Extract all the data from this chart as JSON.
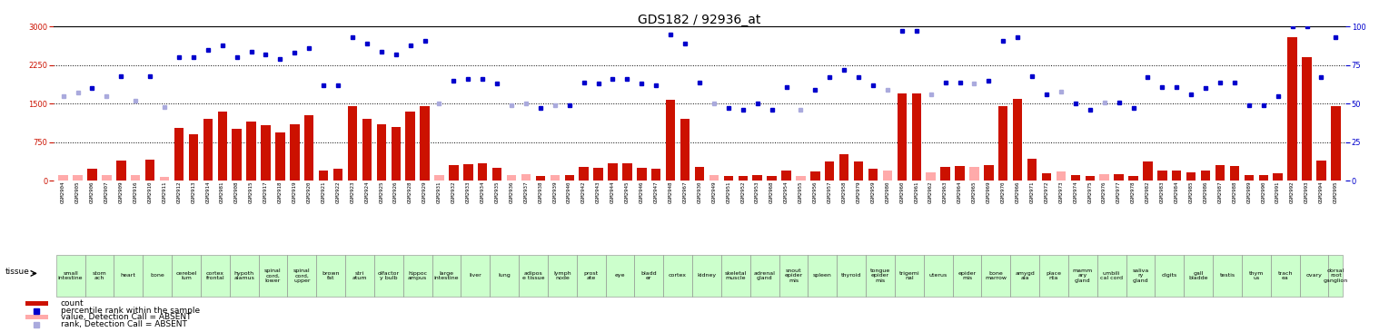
{
  "title": "GDS182 / 92936_at",
  "gsm_ids": [
    "GSM2904",
    "GSM2905",
    "GSM2906",
    "GSM2907",
    "GSM2909",
    "GSM2916",
    "GSM2910",
    "GSM2911",
    "GSM2912",
    "GSM2913",
    "GSM2914",
    "GSM2981",
    "GSM2908",
    "GSM2915",
    "GSM2917",
    "GSM2918",
    "GSM2919",
    "GSM2920",
    "GSM2921",
    "GSM2922",
    "GSM2923",
    "GSM2924",
    "GSM2925",
    "GSM2926",
    "GSM2928",
    "GSM2929",
    "GSM2931",
    "GSM2932",
    "GSM2933",
    "GSM2934",
    "GSM2935",
    "GSM2936",
    "GSM2937",
    "GSM2938",
    "GSM2939",
    "GSM2940",
    "GSM2942",
    "GSM2943",
    "GSM2944",
    "GSM2945",
    "GSM2946",
    "GSM2947",
    "GSM2948",
    "GSM2967",
    "GSM2930",
    "GSM2949",
    "GSM2951",
    "GSM2952",
    "GSM2953",
    "GSM2968",
    "GSM2954",
    "GSM2955",
    "GSM2956",
    "GSM2957",
    "GSM2958",
    "GSM2979",
    "GSM2959",
    "GSM2980",
    "GSM2960",
    "GSM2961",
    "GSM2962",
    "GSM2963",
    "GSM2964",
    "GSM2965",
    "GSM2969",
    "GSM2970",
    "GSM2966",
    "GSM2971",
    "GSM2972",
    "GSM2973",
    "GSM2974",
    "GSM2975",
    "GSM2976",
    "GSM2977",
    "GSM2978",
    "GSM2982",
    "GSM2983",
    "GSM2984",
    "GSM2985",
    "GSM2986",
    "GSM2987",
    "GSM2988",
    "GSM2989",
    "GSM2990",
    "GSM2991",
    "GSM2992",
    "GSM2993",
    "GSM2994",
    "GSM2995"
  ],
  "tissue_groups": [
    [
      "small\nintestine",
      2
    ],
    [
      "stom\nach",
      2
    ],
    [
      "heart",
      2
    ],
    [
      "bone",
      2
    ],
    [
      "cerebel\nlum",
      2
    ],
    [
      "cortex\nfrontal",
      2
    ],
    [
      "hypoth\nalamus",
      2
    ],
    [
      "spinal\ncord,\nlower",
      2
    ],
    [
      "spinal\ncord,\nupper",
      2
    ],
    [
      "brown\nfat",
      2
    ],
    [
      "stri\natum",
      2
    ],
    [
      "olfactor\ny bulb",
      2
    ],
    [
      "hippoc\nampus",
      2
    ],
    [
      "large\nintestine",
      2
    ],
    [
      "liver",
      2
    ],
    [
      "lung",
      2
    ],
    [
      "adipos\ne tissue",
      2
    ],
    [
      "lymph\nnode",
      2
    ],
    [
      "prost\nate",
      2
    ],
    [
      "eye",
      2
    ],
    [
      "bladd\ner",
      2
    ],
    [
      "cortex",
      2
    ],
    [
      "kidney",
      2
    ],
    [
      "skeletal\nmuscle",
      2
    ],
    [
      "adrenal\ngland",
      2
    ],
    [
      "snout\nepider\nmis",
      2
    ],
    [
      "spleen",
      2
    ],
    [
      "thyroid",
      2
    ],
    [
      "tongue\nepider\nmis",
      2
    ],
    [
      "trigemi\nnal",
      2
    ],
    [
      "uterus",
      2
    ],
    [
      "epider\nmis",
      2
    ],
    [
      "bone\nmarrow",
      2
    ],
    [
      "amygd\nala",
      2
    ],
    [
      "place\nnta",
      2
    ],
    [
      "mamm\nary\ngland",
      2
    ],
    [
      "umbili\ncal cord",
      2
    ],
    [
      "saliva\nry\ngland",
      2
    ],
    [
      "digits",
      2
    ],
    [
      "gall\nbladde",
      2
    ],
    [
      "testis",
      2
    ],
    [
      "thym\nus",
      2
    ],
    [
      "trach\nea",
      2
    ],
    [
      "ovary",
      2
    ],
    [
      "dorsal\nroot\nganglion",
      1
    ]
  ],
  "bar_values": [
    117,
    120,
    233,
    107,
    404,
    116,
    408,
    70,
    1030,
    900,
    1200,
    1350,
    1020,
    1150,
    1080,
    950,
    1100,
    1270,
    200,
    230,
    1460,
    1200,
    1100,
    1050,
    1350,
    1450,
    120,
    300,
    330,
    350,
    250,
    110,
    130,
    90,
    110,
    110,
    270,
    250,
    340,
    350,
    260,
    230,
    1580,
    1200,
    280,
    120,
    100,
    90,
    120,
    90,
    200,
    90,
    180,
    380,
    520,
    380,
    240,
    200,
    1700,
    1700,
    160,
    280,
    290,
    280,
    310,
    1450,
    1600,
    430,
    150,
    180,
    120,
    90,
    130,
    130,
    100,
    370,
    210,
    210,
    160,
    200,
    300,
    290,
    110,
    110,
    150,
    2800,
    2400,
    400,
    1460
  ],
  "absent_mask": [
    true,
    true,
    false,
    true,
    false,
    true,
    false,
    true,
    false,
    false,
    false,
    false,
    false,
    false,
    false,
    false,
    false,
    false,
    false,
    false,
    false,
    false,
    false,
    false,
    false,
    false,
    true,
    false,
    false,
    false,
    false,
    true,
    true,
    false,
    true,
    false,
    false,
    false,
    false,
    false,
    false,
    false,
    false,
    false,
    false,
    true,
    false,
    false,
    false,
    false,
    false,
    true,
    false,
    false,
    false,
    false,
    false,
    true,
    false,
    false,
    true,
    false,
    false,
    true,
    false,
    false,
    false,
    false,
    false,
    true,
    false,
    false,
    true,
    false,
    false,
    false,
    false,
    false,
    false,
    false,
    false,
    false,
    false,
    false,
    false,
    false,
    false,
    false,
    false
  ],
  "rank_values": [
    55,
    57,
    60,
    55,
    68,
    52,
    68,
    48,
    80,
    80,
    85,
    88,
    80,
    84,
    82,
    79,
    83,
    86,
    62,
    62,
    93,
    89,
    84,
    82,
    88,
    91,
    50,
    65,
    66,
    66,
    63,
    49,
    50,
    47,
    49,
    49,
    64,
    63,
    66,
    66,
    63,
    62,
    95,
    89,
    64,
    50,
    47,
    46,
    50,
    46,
    61,
    46,
    59,
    67,
    72,
    67,
    62,
    59,
    97,
    97,
    56,
    64,
    64,
    63,
    65,
    91,
    93,
    68,
    56,
    58,
    50,
    46,
    51,
    51,
    47,
    67,
    61,
    61,
    56,
    60,
    64,
    64,
    49,
    49,
    55,
    100,
    100,
    67,
    93
  ],
  "absent_rank_mask": [
    true,
    true,
    false,
    true,
    false,
    true,
    false,
    true,
    false,
    false,
    false,
    false,
    false,
    false,
    false,
    false,
    false,
    false,
    false,
    false,
    false,
    false,
    false,
    false,
    false,
    false,
    true,
    false,
    false,
    false,
    false,
    true,
    true,
    false,
    true,
    false,
    false,
    false,
    false,
    false,
    false,
    false,
    false,
    false,
    false,
    true,
    false,
    false,
    false,
    false,
    false,
    true,
    false,
    false,
    false,
    false,
    false,
    true,
    false,
    false,
    true,
    false,
    false,
    true,
    false,
    false,
    false,
    false,
    false,
    true,
    false,
    false,
    true,
    false,
    false,
    false,
    false,
    false,
    false,
    false,
    false,
    false,
    false,
    false,
    false,
    false,
    false,
    false,
    false
  ],
  "ylim_left": [
    0,
    3000
  ],
  "ylim_right": [
    0,
    100
  ],
  "yticks_left": [
    0,
    750,
    1500,
    2250,
    3000
  ],
  "yticks_right": [
    0,
    25,
    50,
    75,
    100
  ],
  "bar_color_present": "#CC1100",
  "bar_color_absent": "#FFAAAA",
  "dot_color_present": "#0000CC",
  "dot_color_absent": "#AAAADD",
  "bg_color": "#FFFFFF",
  "tissue_bg": "#CCFFCC",
  "left_axis_color": "#CC1100",
  "right_axis_color": "#0000CC",
  "title_fontsize": 10,
  "tick_fontsize": 6,
  "gsm_fontsize": 4.2,
  "tissue_fontsize": 4.5,
  "legend_fontsize": 6.5
}
